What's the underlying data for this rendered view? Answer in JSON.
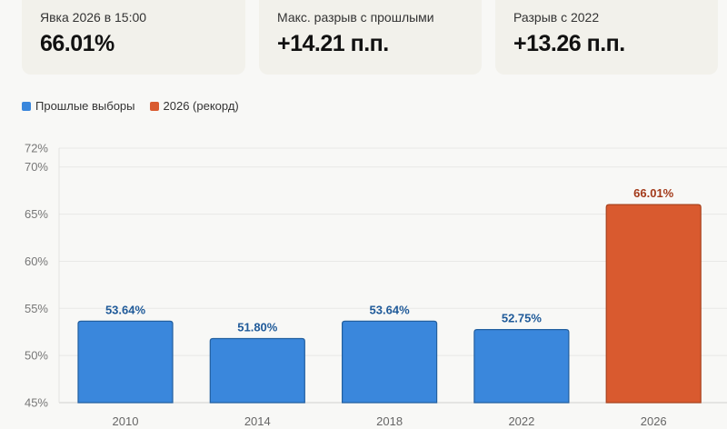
{
  "cards": [
    {
      "label": "Явка 2026 в 15:00",
      "value": "66.01%"
    },
    {
      "label": "Макс. разрыв с прошлыми",
      "value": "+14.21 п.п."
    },
    {
      "label": "Разрыв с 2022",
      "value": "+13.26 п.п."
    }
  ],
  "chart_data": {
    "type": "bar",
    "categories": [
      "2010",
      "2014",
      "2018",
      "2022",
      "2026"
    ],
    "values": [
      53.64,
      51.8,
      53.64,
      52.75,
      66.01
    ],
    "data_labels": [
      "53.64%",
      "51.80%",
      "53.64%",
      "52.75%",
      "66.01%"
    ],
    "series_assignment": [
      "Прошлые выборы",
      "Прошлые выборы",
      "Прошлые выборы",
      "Прошлые выборы",
      "2026 (рекорд)"
    ],
    "legend": [
      {
        "name": "Прошлые выборы",
        "color": "#3a87dc"
      },
      {
        "name": "2026 (рекорд)",
        "color": "#d95a2f"
      }
    ],
    "legend_position": "top-left",
    "ylim": [
      45,
      72
    ],
    "yticks": [
      45,
      50,
      55,
      60,
      65,
      70,
      72
    ],
    "ytick_labels": [
      "45%",
      "50%",
      "55%",
      "60%",
      "65%",
      "70%",
      "72%"
    ],
    "grid": true,
    "label_colors": {
      "past": "#1f5a99",
      "record": "#a33a1a"
    }
  }
}
